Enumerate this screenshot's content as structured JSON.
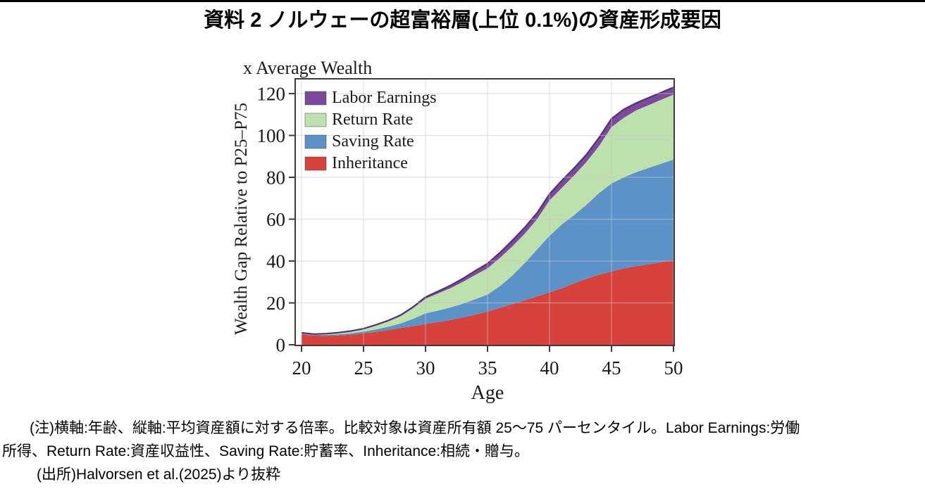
{
  "page": {
    "title": "資料 2 ノルウェーの超富裕層(上位 0.1%)の資産形成要因",
    "note_line1": "(注)横軸:年齢、縦軸:平均資産額に対する倍率。比較対象は資産所有額 25〜75 パーセンタイル。Labor Earnings:労働",
    "note_line2": "所得、Return Rate:資産収益性、Saving Rate:貯蓄率、Inheritance:相続・贈与。",
    "source_line": "(出所)Halvorsen et al.(2025)より抜粋"
  },
  "chart_data": {
    "type": "area",
    "stacked": true,
    "title": "x Average Wealth",
    "xlabel": "Age",
    "ylabel": "Wealth Gap Relative to P25–P75",
    "x": [
      20,
      21,
      22,
      23,
      24,
      25,
      26,
      27,
      28,
      29,
      30,
      31,
      32,
      33,
      34,
      35,
      36,
      37,
      38,
      39,
      40,
      41,
      42,
      43,
      44,
      45,
      46,
      47,
      48,
      49,
      50
    ],
    "xticks": [
      20,
      25,
      30,
      35,
      40,
      45,
      50
    ],
    "yticks": [
      0,
      20,
      40,
      60,
      80,
      100,
      120
    ],
    "xlim": [
      19.5,
      50.05
    ],
    "ylim": [
      0,
      127
    ],
    "grid": true,
    "legend_position": "inside-top-left",
    "stack_bottom_to_top": [
      "Inheritance",
      "Saving Rate",
      "Return Rate",
      "Labor Earnings"
    ],
    "series": [
      {
        "name": "Labor Earnings",
        "color": "#7B4A9B",
        "outline": "#55307A",
        "values": [
          0.1,
          0.1,
          0.2,
          0.2,
          0.2,
          0.2,
          0.3,
          0.4,
          0.5,
          0.6,
          0.8,
          1.0,
          1.3,
          1.6,
          2.0,
          2.3,
          2.5,
          2.8,
          3.0,
          3.0,
          3.0,
          3.5,
          3.5,
          3.5,
          4.0,
          4.0,
          4.0,
          3.5,
          3.5,
          3.5,
          3.5
        ]
      },
      {
        "name": "Return Rate",
        "color": "#BDE1AC",
        "outline": "#BDE1AC",
        "values": [
          0.3,
          0.3,
          0.4,
          0.6,
          0.9,
          1.2,
          1.9,
          2.6,
          3.5,
          5.1,
          7.0,
          8.2,
          9.2,
          10.4,
          11.6,
          12.5,
          13.5,
          14.0,
          14.0,
          14.5,
          17.0,
          17.5,
          19.0,
          20.5,
          22.5,
          27.0,
          28.5,
          29.5,
          30.0,
          30.5,
          31.0
        ]
      },
      {
        "name": "Saving Rate",
        "color": "#5B93C8",
        "outline": "#5B93C8",
        "values": [
          0.3,
          0.3,
          0.4,
          0.5,
          0.7,
          0.8,
          1.1,
          1.6,
          2.2,
          3.5,
          5.1,
          5.5,
          6.0,
          6.6,
          7.3,
          8.1,
          10.4,
          13.6,
          17.8,
          22.4,
          27.0,
          30.5,
          32.6,
          35.5,
          39.0,
          42.0,
          43.5,
          45.0,
          46.1,
          47.1,
          48.0
        ]
      },
      {
        "name": "Inheritance",
        "color": "#D8423C",
        "outline": "#D8423C",
        "values": [
          5.0,
          4.4,
          4.3,
          4.5,
          4.8,
          5.5,
          6.2,
          7.0,
          8.0,
          8.9,
          9.9,
          10.8,
          11.8,
          13.0,
          14.4,
          15.9,
          17.6,
          19.4,
          21.2,
          23.1,
          25.0,
          27.0,
          29.4,
          31.5,
          33.5,
          35.0,
          36.5,
          37.5,
          38.4,
          39.4,
          40.5
        ]
      }
    ],
    "style": {
      "text_color": "#1a1a1a",
      "frame_color": "#3c3c3c",
      "grid_color": "#c8c8c8"
    }
  }
}
